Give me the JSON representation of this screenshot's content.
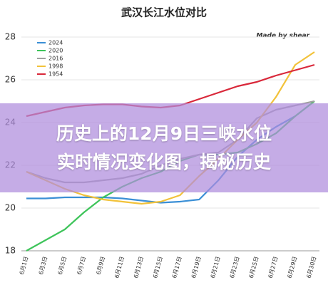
{
  "chart_data": {
    "type": "line",
    "title": "武汉长江水位对比",
    "annotation": "Made by shear",
    "categories": [
      "6月1日",
      "6月3日",
      "6月5日",
      "6月7日",
      "6月9日",
      "6月11日",
      "6月13日",
      "6月15日",
      "6月17日",
      "6月19日",
      "6月21日",
      "6月23日",
      "6月25日",
      "6月27日",
      "6月29日",
      "6月30日"
    ],
    "series": [
      {
        "name": "2024",
        "color": "#3a8fd6",
        "values": [
          20.45,
          20.45,
          20.5,
          20.5,
          20.5,
          20.45,
          20.35,
          20.25,
          20.3,
          20.4,
          21.3,
          22.4,
          23.2,
          23.8,
          24.3,
          25.0
        ]
      },
      {
        "name": "2020",
        "color": "#3ec45a",
        "values": [
          18.0,
          18.5,
          19.0,
          19.8,
          20.5,
          21.0,
          21.4,
          21.7,
          22.2,
          22.5,
          22.5,
          22.6,
          23.0,
          23.5,
          24.3,
          25.0
        ]
      },
      {
        "name": "2016",
        "color": "#a0a0a0",
        "values": [
          21.7,
          21.4,
          21.2,
          21.2,
          21.3,
          21.4,
          21.6,
          22.0,
          22.3,
          22.5,
          22.6,
          23.2,
          24.2,
          24.6,
          24.8,
          25.0
        ]
      },
      {
        "name": "1998",
        "color": "#f2c23a",
        "values": [
          21.7,
          21.3,
          20.9,
          20.6,
          20.4,
          20.3,
          20.2,
          20.3,
          20.6,
          21.5,
          22.3,
          23.2,
          24.0,
          25.2,
          26.7,
          27.3
        ]
      },
      {
        "name": "1954",
        "color": "#d9283a",
        "values": [
          24.3,
          24.5,
          24.7,
          24.8,
          24.85,
          24.85,
          24.75,
          24.7,
          24.8,
          25.1,
          25.4,
          25.7,
          25.9,
          26.2,
          26.45,
          26.7
        ]
      }
    ],
    "ylim": [
      18,
      28
    ],
    "yticks": [
      18,
      20,
      22,
      24,
      26,
      28
    ],
    "grid": true,
    "legend": "upper left"
  },
  "overlay": {
    "lines": [
      "历史上的12月9日三峡水位",
      "实时情况变化图，揭秘历史"
    ]
  }
}
